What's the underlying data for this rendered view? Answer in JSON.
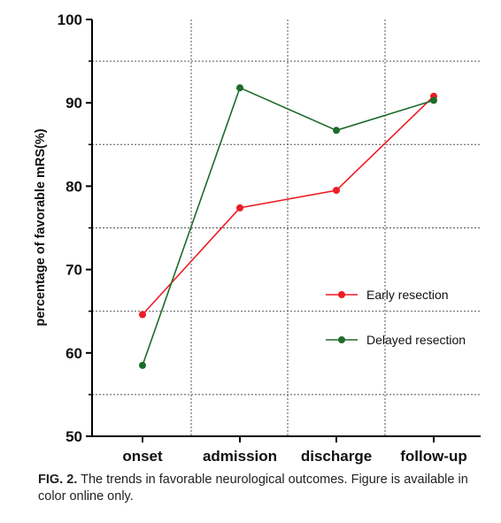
{
  "chart_data": {
    "type": "line",
    "title": "",
    "xlabel": "",
    "ylabel": "percentage of favorable mRS(%)",
    "ylim": [
      50,
      100
    ],
    "yticks": [
      50,
      60,
      70,
      80,
      90,
      100
    ],
    "categories": [
      "onset",
      "admission",
      "discharge",
      "follow-up"
    ],
    "series": [
      {
        "name": "Early resection",
        "color": "#ee1c24",
        "values": [
          64.6,
          77.4,
          79.5,
          90.8
        ]
      },
      {
        "name": "Delayed resection",
        "color": "#1e6b2a",
        "values": [
          58.5,
          91.8,
          86.7,
          90.3
        ]
      }
    ],
    "grid": "dotted",
    "legend_position": "right-middle"
  },
  "caption": {
    "label": "FIG. 2.",
    "text": "The trends in favorable neurological outcomes. Figure is available in color online only."
  }
}
